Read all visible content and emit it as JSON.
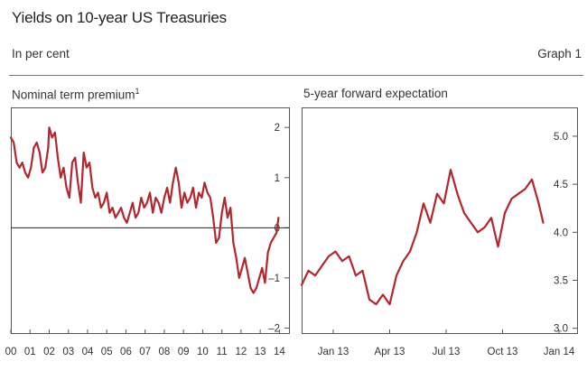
{
  "header": {
    "title": "Yields on 10-year US Treasuries",
    "units": "In per cent",
    "graph_label": "Graph 1"
  },
  "colors": {
    "line": "#b3262d",
    "axis": "#555555",
    "zero_line": "#222222",
    "background": "#ffffff"
  },
  "chart_data": [
    {
      "type": "line",
      "title": "Nominal term premium",
      "footnote_marker": "1",
      "xlabel": "",
      "ylabel": "",
      "x_tick_labels": [
        "00",
        "01",
        "02",
        "03",
        "04",
        "05",
        "06",
        "07",
        "08",
        "09",
        "10",
        "11",
        "12",
        "13",
        "14"
      ],
      "xlim": [
        2000,
        2014.5
      ],
      "y_tick_labels": [
        "2",
        "1",
        "0",
        "–1",
        "–2"
      ],
      "y_ticks": [
        2,
        1,
        0,
        -1,
        -2
      ],
      "ylim": [
        -2.1,
        2.4
      ],
      "zero_line": true,
      "grid": false,
      "x": [
        2000.0,
        2000.15,
        2000.3,
        2000.45,
        2000.6,
        2000.75,
        2000.9,
        2001.05,
        2001.2,
        2001.35,
        2001.5,
        2001.65,
        2001.8,
        2001.95,
        2002.0,
        2002.15,
        2002.3,
        2002.45,
        2002.6,
        2002.75,
        2002.9,
        2003.05,
        2003.2,
        2003.35,
        2003.5,
        2003.65,
        2003.8,
        2003.95,
        2004.1,
        2004.25,
        2004.4,
        2004.55,
        2004.7,
        2004.85,
        2005.0,
        2005.15,
        2005.3,
        2005.45,
        2005.6,
        2005.75,
        2005.9,
        2006.05,
        2006.2,
        2006.35,
        2006.5,
        2006.65,
        2006.8,
        2006.95,
        2007.1,
        2007.25,
        2007.4,
        2007.55,
        2007.7,
        2007.85,
        2008.0,
        2008.15,
        2008.3,
        2008.45,
        2008.6,
        2008.75,
        2008.9,
        2009.05,
        2009.2,
        2009.35,
        2009.5,
        2009.65,
        2009.8,
        2009.95,
        2010.1,
        2010.25,
        2010.4,
        2010.55,
        2010.7,
        2010.85,
        2011.0,
        2011.15,
        2011.3,
        2011.45,
        2011.6,
        2011.75,
        2011.9,
        2012.05,
        2012.2,
        2012.35,
        2012.5,
        2012.65,
        2012.8,
        2012.95,
        2013.1,
        2013.25,
        2013.4,
        2013.55,
        2013.7,
        2013.85,
        2013.95
      ],
      "series": [
        {
          "values": [
            1.8,
            1.7,
            1.3,
            1.2,
            1.3,
            1.1,
            1.0,
            1.2,
            1.6,
            1.7,
            1.5,
            1.1,
            1.2,
            1.6,
            2.0,
            1.8,
            1.9,
            1.4,
            1.0,
            1.2,
            0.8,
            0.6,
            1.3,
            1.4,
            0.9,
            0.5,
            1.5,
            1.2,
            1.3,
            0.8,
            0.6,
            0.7,
            0.4,
            0.5,
            0.7,
            0.3,
            0.4,
            0.2,
            0.3,
            0.4,
            0.2,
            0.1,
            0.3,
            0.5,
            0.2,
            0.3,
            0.6,
            0.4,
            0.5,
            0.7,
            0.3,
            0.6,
            0.5,
            0.3,
            0.6,
            0.8,
            0.5,
            0.9,
            1.2,
            0.9,
            0.4,
            0.7,
            0.5,
            0.6,
            0.8,
            0.4,
            0.7,
            0.6,
            0.9,
            0.7,
            0.6,
            0.2,
            -0.3,
            -0.2,
            0.3,
            0.6,
            0.2,
            0.4,
            -0.3,
            -0.6,
            -1.0,
            -0.8,
            -0.6,
            -0.9,
            -1.2,
            -1.3,
            -1.2,
            -1.0,
            -0.8,
            -1.1,
            -0.5,
            -0.3,
            -0.2,
            -0.1,
            0.2
          ]
        }
      ]
    },
    {
      "type": "line",
      "title": "5-year forward expectation",
      "xlabel": "",
      "ylabel": "",
      "x_tick_labels": [
        "Jan 13",
        "Apr 13",
        "Jul 13",
        "Oct 13",
        "Jan 14"
      ],
      "x_ticks": [
        2013.0,
        2013.25,
        2013.5,
        2013.75,
        2014.0
      ],
      "xlim": [
        2012.86,
        2014.08
      ],
      "y_tick_labels": [
        "5.0",
        "4.5",
        "4.0",
        "3.5",
        "3.0"
      ],
      "y_ticks": [
        5.0,
        4.5,
        4.0,
        3.5,
        3.0
      ],
      "ylim": [
        2.95,
        5.3
      ],
      "grid": false,
      "x": [
        2012.86,
        2012.89,
        2012.92,
        2012.95,
        2012.98,
        2013.01,
        2013.04,
        2013.07,
        2013.1,
        2013.13,
        2013.16,
        2013.19,
        2013.22,
        2013.25,
        2013.28,
        2013.31,
        2013.34,
        2013.37,
        2013.4,
        2013.43,
        2013.46,
        2013.49,
        2013.52,
        2013.55,
        2013.58,
        2013.61,
        2013.64,
        2013.67,
        2013.7,
        2013.73,
        2013.76,
        2013.79,
        2013.82,
        2013.85,
        2013.88,
        2013.91,
        2013.93
      ],
      "series": [
        {
          "values": [
            3.45,
            3.6,
            3.55,
            3.65,
            3.75,
            3.8,
            3.7,
            3.75,
            3.55,
            3.6,
            3.3,
            3.25,
            3.35,
            3.25,
            3.55,
            3.7,
            3.8,
            4.0,
            4.3,
            4.1,
            4.4,
            4.3,
            4.65,
            4.4,
            4.2,
            4.1,
            4.0,
            4.05,
            4.15,
            3.85,
            4.2,
            4.35,
            4.4,
            4.45,
            4.55,
            4.3,
            4.1
          ]
        }
      ]
    }
  ]
}
